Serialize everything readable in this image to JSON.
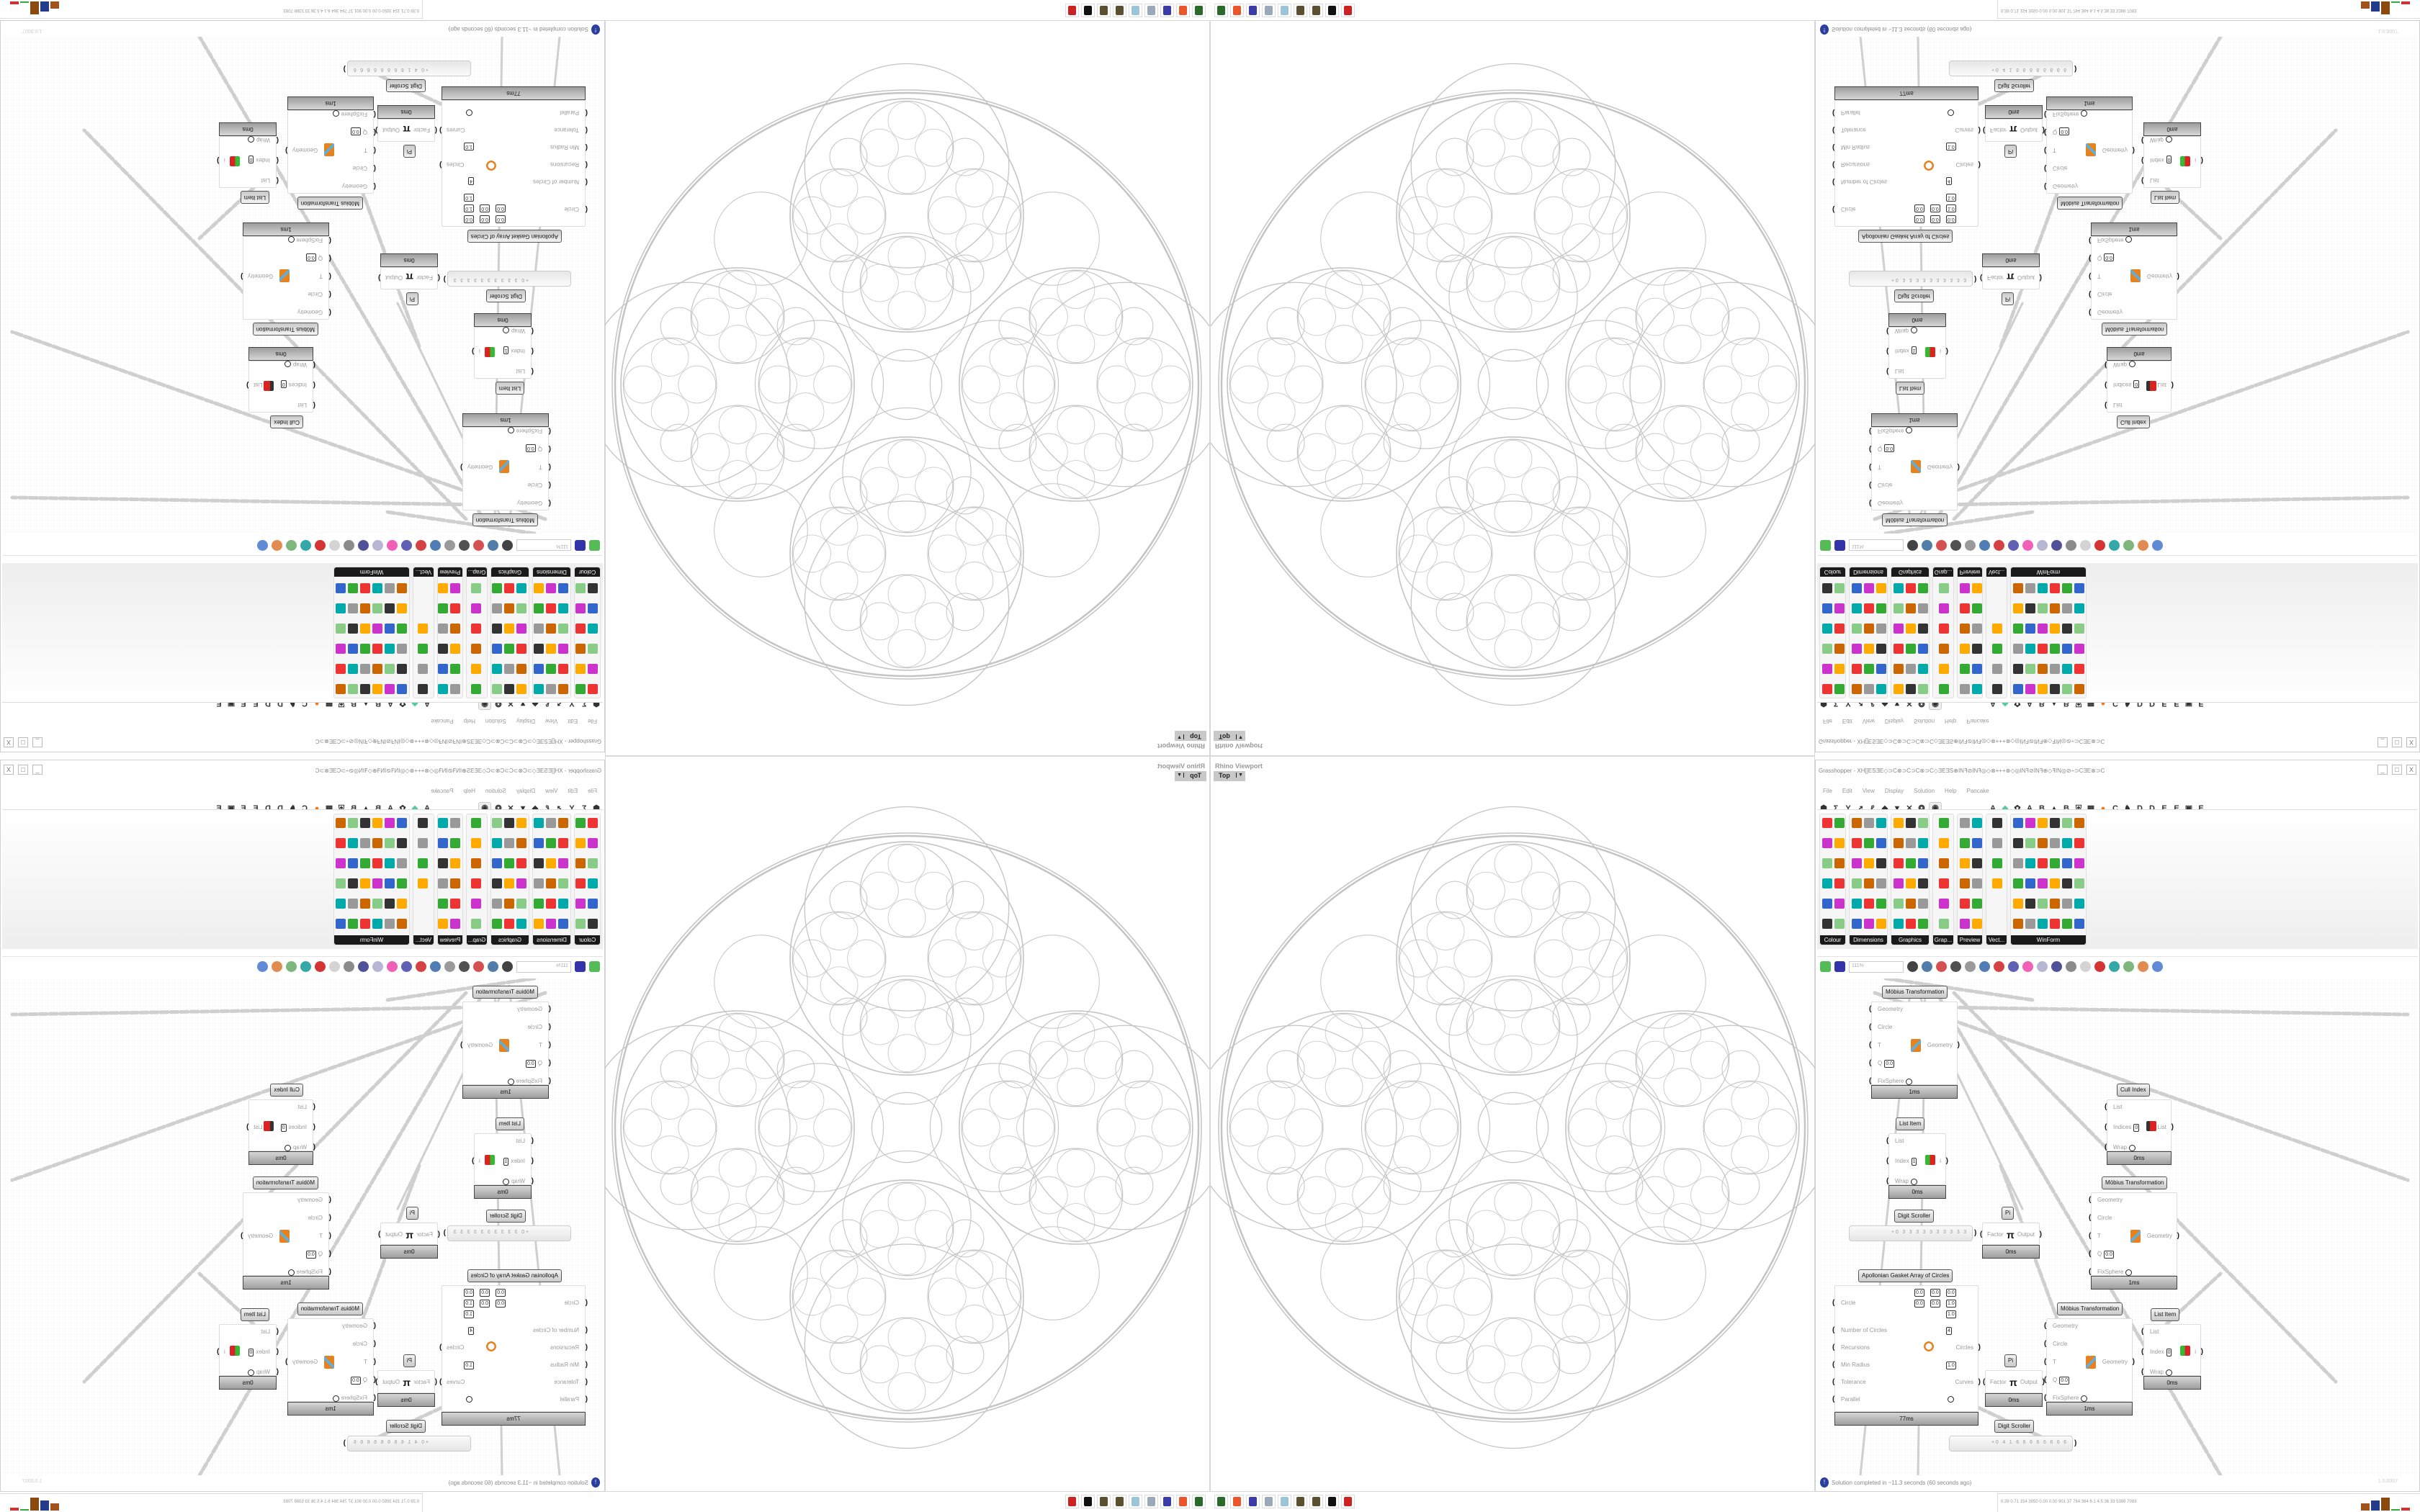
{
  "rhino": {
    "title": "Rhino Viewport",
    "view": "Top"
  },
  "grasshopper": {
    "title": "Grasshopper - XH[]ESƎE◇⊃C⊗⊃C⊃C⊗⊃C◇ƎEƎS⊕INꟻ⊘INꟻ◎◇⊗+++⊗◇◎INꟻ⊘INꟻ⊕◇ꟻIN◎⊘÷⊃CƎE⊗⊃C",
    "window_buttons": [
      "_",
      "□",
      "X"
    ],
    "menu": [
      "File",
      "Edit",
      "View",
      "Display",
      "Solution",
      "Help",
      "Pancake"
    ],
    "tab_letters": [
      "A",
      "A",
      "B",
      "B",
      "C",
      "D",
      "D",
      "E",
      "E",
      "E"
    ],
    "ribbon_groups": [
      "Colour",
      "Dimensions",
      "Graphics",
      "Grap...",
      "Preview",
      "Vect...",
      "WinForm"
    ],
    "zoom": "111%",
    "status": "Solution completed in ~11.3 seconds (60 seconds ago)",
    "version": "1.0.0007"
  },
  "components": [
    {
      "title": "Möbius Transformation",
      "inputs": [
        "Geometry",
        "Circle",
        "T",
        "Q",
        "FixSphere"
      ],
      "q": "0.0",
      "output": "Geometry",
      "time": "1ms"
    },
    {
      "title": "List Item",
      "inputs": [
        "List",
        "Index",
        "Wrap"
      ],
      "index": "1",
      "output": "i",
      "time": "0ms"
    },
    {
      "title": "Cull Index",
      "inputs": [
        "List",
        "Indices",
        "Wrap"
      ],
      "index": "0",
      "output": "List",
      "time": "0ms"
    },
    {
      "title": "Möbius Transformation",
      "inputs": [
        "Geometry",
        "Circle",
        "T",
        "Q",
        "FixSphere"
      ],
      "q": "0.0",
      "output": "Geometry",
      "time": "1ms"
    },
    {
      "title": "Pi",
      "inputs": [
        "Factor"
      ],
      "output": "Output",
      "time": "0ms"
    },
    {
      "title": "Apollonian Gasket Array of Circles",
      "inputs": [
        "Circle",
        "Number of Circles",
        "Recursions",
        "Min Radius",
        "Tolerance",
        "Parallel"
      ],
      "center": {
        "x": "0.0",
        "y": "0.0",
        "z": "0.0"
      },
      "normal": {
        "x": "0.0",
        "y": "0.0",
        "z": "1.0"
      },
      "radius": "1.0",
      "num_circles": "4",
      "min_radius": "1.0",
      "outputs": [
        "Circles",
        "Curves"
      ],
      "time": "77ms"
    },
    {
      "title": "Möbius Transformation",
      "inputs": [
        "Geometry",
        "Circle",
        "T",
        "Q",
        "FixSphere"
      ],
      "q": "0.0",
      "output": "Geometry",
      "time": "1ms"
    },
    {
      "title": "Pi",
      "inputs": [
        "Factor"
      ],
      "output": "Output",
      "time": "0ms"
    },
    {
      "title": "List Item",
      "inputs": [
        "List",
        "Index",
        "Wrap"
      ],
      "index": "0",
      "output": "i",
      "time": "0ms"
    }
  ],
  "digit_scrollers": [
    {
      "title": "Digit Scroller",
      "value": "+0 3 3 3 3 3 3 3 3 3 3"
    },
    {
      "title": "Digit Scroller",
      "value": "+0 4 1 6 6 6 6 6 6 6 6"
    }
  ],
  "stats": "0.39 0.71 154 3050 0.00 0.00 901 37 784 364 6.1 4.5 36 33 5388 7083",
  "taskbar": [
    {
      "icon": "device-manager-icon",
      "color": "#2a6a2a"
    },
    {
      "icon": "firefox-icon",
      "color": "#e8562a"
    },
    {
      "icon": "floppy-64-icon",
      "color": "#3a3aa8"
    },
    {
      "icon": "document-icon",
      "color": "#9aa8bc"
    },
    {
      "icon": "notepad-icon",
      "color": "#9cc4d8"
    },
    {
      "icon": "rhino-icon",
      "color": "#5a5030"
    },
    {
      "icon": "rhino-icon",
      "color": "#5a5030"
    },
    {
      "icon": "inkscape-icon",
      "color": "#111111"
    },
    {
      "icon": "app-red-icon",
      "color": "#cc2222"
    }
  ],
  "colors": {
    "accent_orange": "#f07a20",
    "ribbon_label": "#1a1a1a",
    "wire": "#cfcfcf",
    "pattern": "#c4c4c4"
  }
}
